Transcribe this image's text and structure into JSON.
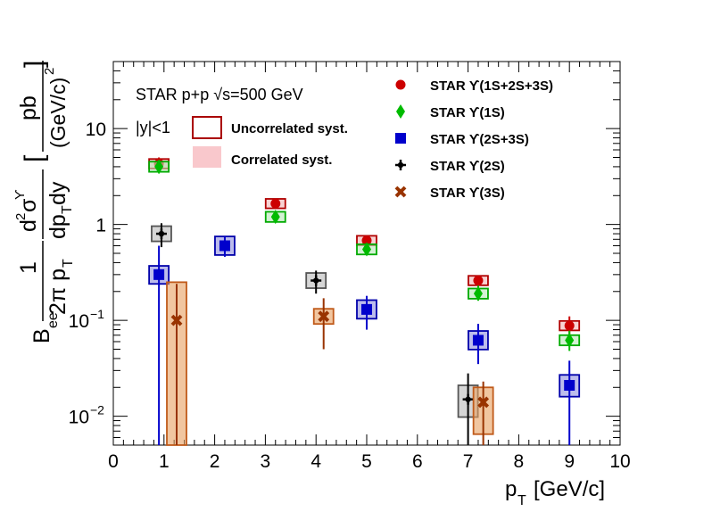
{
  "chart_data": {
    "type": "scatter",
    "header": {
      "line1": "STAR p+p √s=500 GeV",
      "line2": "|y|<1"
    },
    "syst_legend": {
      "uncorrelated": "Uncorrelated syst.",
      "correlated": "Correlated syst."
    },
    "xlabel": "p_T [GeV/c]",
    "ylabel": "B_ee (1/2π p_T) d²σ^ϒ/dp_T dy [pb/(GeV/c)²]",
    "xlim": [
      0,
      10
    ],
    "ylim": [
      0.005,
      50
    ],
    "yscale": "log",
    "xticks": [
      "0",
      "1",
      "2",
      "3",
      "4",
      "5",
      "6",
      "7",
      "8",
      "9",
      "10"
    ],
    "yticks": [
      {
        "base": "10",
        "exp": "−2",
        "v": 0.01
      },
      {
        "base": "10",
        "exp": "−1",
        "v": 0.1
      },
      {
        "base": "1",
        "exp": "",
        "v": 1
      },
      {
        "base": "10",
        "exp": "",
        "v": 10
      }
    ],
    "legend_position": "top-right",
    "series": [
      {
        "name": "STAR ϒ(1S+2S+3S)",
        "marker": "circle",
        "color": "#cc0000",
        "box_color": "#b00000",
        "points": [
          {
            "x": 0.9,
            "y": 4.3,
            "lo": 3.6,
            "hi": 5.0
          },
          {
            "x": 3.2,
            "y": 1.65,
            "lo": 1.5,
            "hi": 1.8
          },
          {
            "x": 5.0,
            "y": 0.68,
            "lo": 0.63,
            "hi": 0.73
          },
          {
            "x": 7.2,
            "y": 0.26,
            "lo": 0.23,
            "hi": 0.29
          },
          {
            "x": 9.0,
            "y": 0.088,
            "lo": 0.07,
            "hi": 0.11
          }
        ]
      },
      {
        "name": "STAR ϒ(1S)",
        "marker": "diamond",
        "color": "#00bb00",
        "box_color": "#00aa00",
        "points": [
          {
            "x": 0.9,
            "y": 4.0,
            "lo": 3.4,
            "hi": 4.7
          },
          {
            "x": 3.2,
            "y": 1.2,
            "lo": 1.05,
            "hi": 1.38
          },
          {
            "x": 5.0,
            "y": 0.55,
            "lo": 0.5,
            "hi": 0.61
          },
          {
            "x": 7.2,
            "y": 0.19,
            "lo": 0.16,
            "hi": 0.23
          },
          {
            "x": 9.0,
            "y": 0.062,
            "lo": 0.048,
            "hi": 0.078
          }
        ]
      },
      {
        "name": "STAR ϒ(2S+3S)",
        "marker": "square",
        "color": "#0000cc",
        "box_color": "#0000aa",
        "points": [
          {
            "x": 0.9,
            "y": 0.3,
            "lo": 0.003,
            "hi": 0.6
          },
          {
            "x": 2.2,
            "y": 0.6,
            "lo": 0.46,
            "hi": 0.75
          },
          {
            "x": 5.0,
            "y": 0.13,
            "lo": 0.08,
            "hi": 0.18
          },
          {
            "x": 7.2,
            "y": 0.062,
            "lo": 0.035,
            "hi": 0.092
          },
          {
            "x": 9.0,
            "y": 0.021,
            "lo": 0.003,
            "hi": 0.038
          }
        ]
      },
      {
        "name": "STAR ϒ(2S)",
        "marker": "cross",
        "color": "#000000",
        "box_color": "#555555",
        "points": [
          {
            "x": 0.95,
            "y": 0.8,
            "lo": 0.58,
            "hi": 1.03
          },
          {
            "x": 4.0,
            "y": 0.26,
            "lo": 0.19,
            "hi": 0.33
          },
          {
            "x": 7.0,
            "y": 0.015,
            "lo": 0.003,
            "hi": 0.028
          }
        ]
      },
      {
        "name": "STAR ϒ(3S)",
        "marker": "x",
        "color": "#993300",
        "box_color": "#c05a1a",
        "points": [
          {
            "x": 1.25,
            "y": 0.1,
            "lo": 0.003,
            "hi": 0.24
          },
          {
            "x": 4.15,
            "y": 0.11,
            "lo": 0.05,
            "hi": 0.17
          },
          {
            "x": 7.3,
            "y": 0.014,
            "lo": 0.003,
            "hi": 0.023
          }
        ]
      }
    ]
  }
}
